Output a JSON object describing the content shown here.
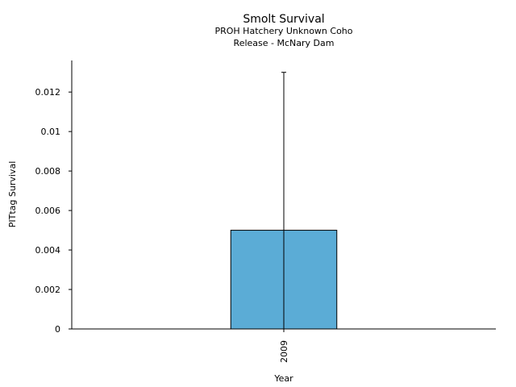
{
  "chart_data": {
    "type": "bar",
    "title": "Smolt Survival",
    "subtitle_lines": [
      "PROH Hatchery Unknown Coho",
      "Release - McNary Dam"
    ],
    "xlabel": "Year",
    "ylabel": "PITtag Survival",
    "categories": [
      "2009"
    ],
    "values": [
      0.005
    ],
    "error_upper": [
      0.013
    ],
    "error_lower": [
      0.0
    ],
    "ylim": [
      0,
      0.0136
    ],
    "yticks": [
      0,
      0.002,
      0.004,
      0.006,
      0.008,
      0.01,
      0.012
    ],
    "ytick_labels": [
      "0",
      "0.002",
      "0.004",
      "0.006",
      "0.008",
      "0.01",
      "0.012"
    ],
    "bar_color": "#5bacd6",
    "grid": false,
    "legend": "none"
  }
}
